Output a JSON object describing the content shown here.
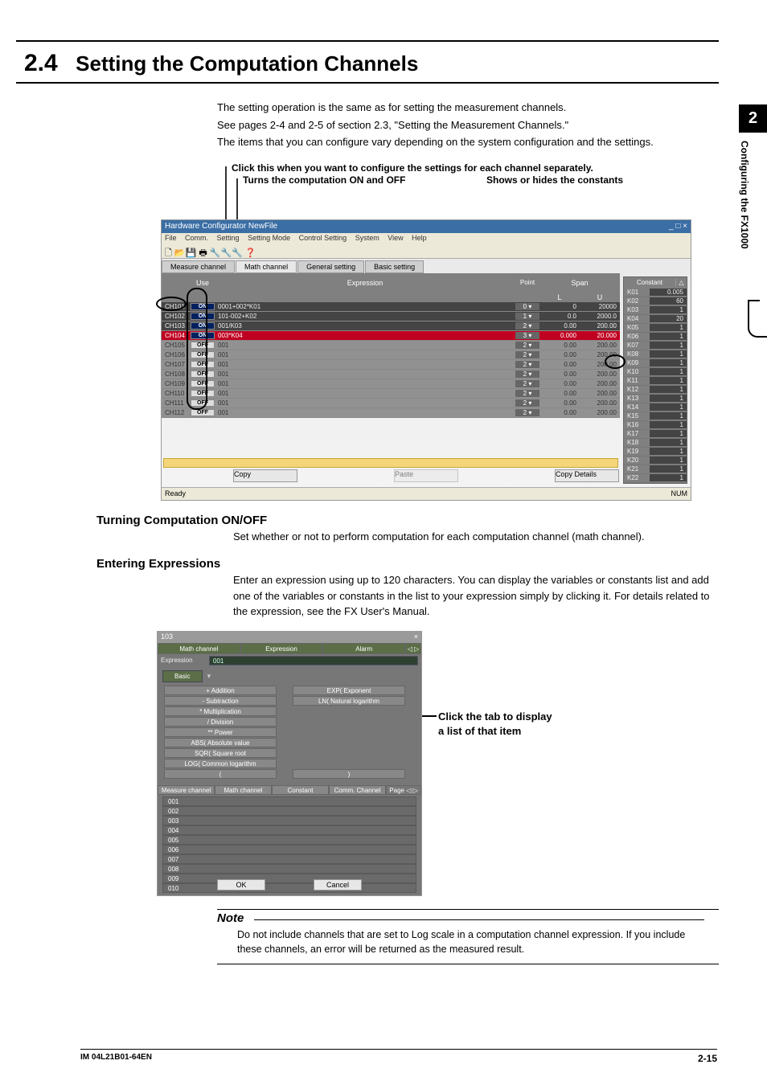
{
  "chapter_number": "2",
  "sidebar_label": "Configuring the FX1000",
  "section_number": "2.4",
  "section_title": "Setting the Computation Channels",
  "intro_lines": [
    "The setting operation is the same as for setting the measurement channels.",
    "See pages 2-4 and 2-5 of section 2.3, \"Setting the Measurement Channels.\"",
    "The items that you can configure vary depending on the system configuration and the settings."
  ],
  "ann_l1": "Click this when you want to configure the settings for each channel separately.",
  "ann_l2": "Turns the computation ON and OFF",
  "ann_l3": "Shows or hides the constants",
  "cfg_window": {
    "title": "Hardware Configurator NewFile",
    "menu": [
      "File",
      "Comm.",
      "Setting",
      "Setting Mode",
      "Control Setting",
      "System",
      "View",
      "Help"
    ],
    "tabs": [
      "Measure channel",
      "Math channel",
      "General setting",
      "Basic setting"
    ],
    "grid_headers": {
      "use": "Use",
      "expr": "Expression",
      "point": "Point",
      "spanL": "L",
      "spanU": "U",
      "span": "Span"
    },
    "rows": [
      {
        "ch": "CH101",
        "state": "ON",
        "expr": "0001+002*K01",
        "pt": "0",
        "l": "0",
        "u": "20000",
        "sel": false
      },
      {
        "ch": "CH102",
        "state": "ON",
        "expr": "101-002+K02",
        "pt": "1",
        "l": "0.0",
        "u": "2000.0",
        "sel": false
      },
      {
        "ch": "CH103",
        "state": "ON",
        "expr": "001/K03",
        "pt": "2",
        "l": "0.00",
        "u": "200.00",
        "sel": false
      },
      {
        "ch": "CH104",
        "state": "ON",
        "expr": "003*K04",
        "pt": "3",
        "l": "0.000",
        "u": "20.000",
        "sel": true
      },
      {
        "ch": "CH105",
        "state": "OFF",
        "expr": "001",
        "pt": "2",
        "l": "0.00",
        "u": "200.00",
        "sel": false
      },
      {
        "ch": "CH106",
        "state": "OFF",
        "expr": "001",
        "pt": "2",
        "l": "0.00",
        "u": "200.00",
        "sel": false
      },
      {
        "ch": "CH107",
        "state": "OFF",
        "expr": "001",
        "pt": "2",
        "l": "0.00",
        "u": "200.00",
        "sel": false
      },
      {
        "ch": "CH108",
        "state": "OFF",
        "expr": "001",
        "pt": "2",
        "l": "0.00",
        "u": "200.00",
        "sel": false
      },
      {
        "ch": "CH109",
        "state": "OFF",
        "expr": "001",
        "pt": "2",
        "l": "0.00",
        "u": "200.00",
        "sel": false
      },
      {
        "ch": "CH110",
        "state": "OFF",
        "expr": "001",
        "pt": "2",
        "l": "0.00",
        "u": "200.00",
        "sel": false
      },
      {
        "ch": "CH111",
        "state": "OFF",
        "expr": "001",
        "pt": "2",
        "l": "0.00",
        "u": "200.00",
        "sel": false
      },
      {
        "ch": "CH112",
        "state": "OFF",
        "expr": "001",
        "pt": "2",
        "l": "0.00",
        "u": "200.00",
        "sel": false
      }
    ],
    "const_header": "Constant",
    "constants": [
      {
        "k": "K01",
        "v": "0.005"
      },
      {
        "k": "K02",
        "v": "60"
      },
      {
        "k": "K03",
        "v": "1"
      },
      {
        "k": "K04",
        "v": "20"
      },
      {
        "k": "K05",
        "v": "1"
      },
      {
        "k": "K06",
        "v": "1"
      },
      {
        "k": "K07",
        "v": "1"
      },
      {
        "k": "K08",
        "v": "1"
      },
      {
        "k": "K09",
        "v": "1"
      },
      {
        "k": "K10",
        "v": "1"
      },
      {
        "k": "K11",
        "v": "1"
      },
      {
        "k": "K12",
        "v": "1"
      },
      {
        "k": "K13",
        "v": "1"
      },
      {
        "k": "K14",
        "v": "1"
      },
      {
        "k": "K15",
        "v": "1"
      },
      {
        "k": "K16",
        "v": "1"
      },
      {
        "k": "K17",
        "v": "1"
      },
      {
        "k": "K18",
        "v": "1"
      },
      {
        "k": "K19",
        "v": "1"
      },
      {
        "k": "K20",
        "v": "1"
      },
      {
        "k": "K21",
        "v": "1"
      },
      {
        "k": "K22",
        "v": "1"
      }
    ],
    "buttons": {
      "copy": "Copy",
      "paste": "Paste",
      "copy2": "Copy Details"
    },
    "status_left": "Ready",
    "status_right": "NUM"
  },
  "sub1_title": "Turning Computation ON/OFF",
  "sub1_text": "Set whether or not to perform computation for each computation channel (math channel).",
  "sub2_title": "Entering Expressions",
  "sub2_text": "Enter an expression using up to 120 characters. You can display the variables or constants list and add one of the variables or constants in the list to your expression simply by clicking it. For details related to the expression, see the FX User's Manual.",
  "expr_dialog": {
    "top_num": "103",
    "close": "×",
    "tabs": [
      "Math channel",
      "Expression",
      "Alarm"
    ],
    "tabs_nav": "◁ ▷",
    "expr_label": "Expression",
    "expr_value": "001",
    "basic_tab": "Basic",
    "left_ops": [
      "+ Addition",
      "- Subtraction",
      "* Multiplication",
      "/ Division",
      "** Power",
      "ABS( Absolute value",
      "SQR( Square root",
      "LOG( Common logarithm",
      "("
    ],
    "right_ops": [
      "EXP( Exponent",
      "LN( Natural logarithm",
      ")"
    ],
    "subtabs": [
      "Measure channel",
      "Math channel",
      "Constant",
      "Comm. Channel"
    ],
    "subtabs_page": "Page ◁ ▷",
    "list": [
      "001",
      "002",
      "003",
      "004",
      "005",
      "006",
      "007",
      "008",
      "009",
      "010"
    ],
    "ok": "OK",
    "cancel": "Cancel"
  },
  "dlg_ann_l1": "Click the tab to display",
  "dlg_ann_l2": "a list of that item",
  "note_label": "Note",
  "note_text": "Do not include channels that are set to Log scale in a computation channel expression. If you include these channels, an error will be returned as the measured result.",
  "footer_left": "IM 04L21B01-64EN",
  "footer_right": "2-15"
}
